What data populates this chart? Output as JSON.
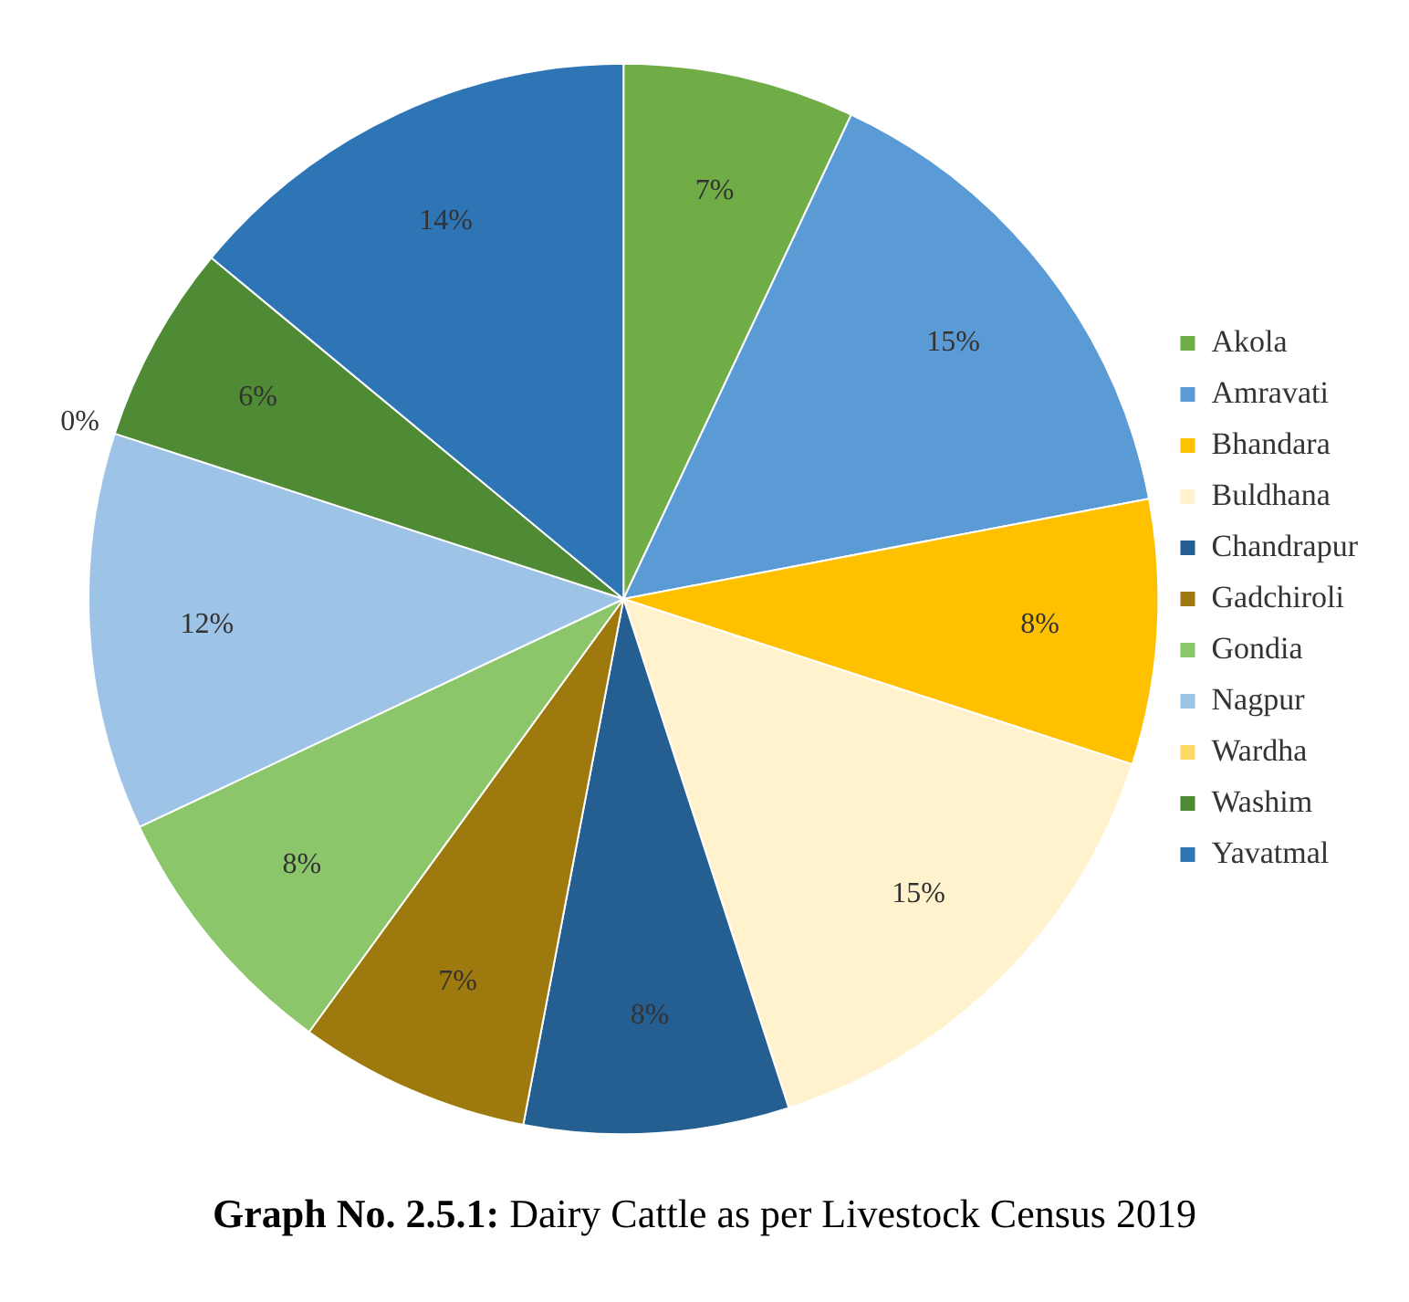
{
  "chart_data": {
    "type": "pie",
    "title": "Graph No. 2.5.1: Dairy Cattle as per Livestock Census 2019",
    "categories": [
      "Akola",
      "Amravati",
      "Bhandara",
      "Buldhana",
      "Chandrapur",
      "Gadchiroli",
      "Gondia",
      "Nagpur",
      "Wardha",
      "Washim",
      "Yavatmal"
    ],
    "values": [
      7,
      15,
      8,
      15,
      8,
      7,
      8,
      12,
      0,
      6,
      14
    ],
    "colors": [
      "#70ad47",
      "#5b9bd5",
      "#ffc000",
      "#fff2cc",
      "#255e91",
      "#9e7a0e",
      "#8cc66a",
      "#9dc3e6",
      "#ffd966",
      "#4f8a35",
      "#2e75b6"
    ],
    "value_labels": [
      "7%",
      "15%",
      "8%",
      "15%",
      "8%",
      "7%",
      "8%",
      "12%",
      "0%",
      "6%",
      "14%"
    ],
    "legend": "right"
  }
}
